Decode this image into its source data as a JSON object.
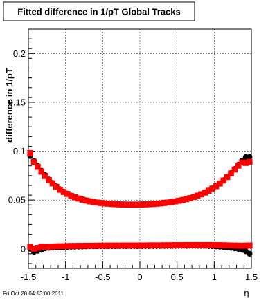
{
  "chart_data": {
    "type": "scatter",
    "title": "Fitted difference in 1/pT  Global Tracks",
    "xlabel": "η",
    "ylabel": "difference in 1/pT",
    "xlim": [
      -1.5,
      1.5
    ],
    "ylim": [
      -0.02,
      0.225
    ],
    "x_ticks": [
      -1.5,
      -1,
      -0.5,
      0,
      0.5,
      1,
      1.5
    ],
    "x_tick_labels": [
      "-1.5",
      "-1",
      "-0.5",
      "0",
      "0.5",
      "1",
      "1.5"
    ],
    "y_ticks": [
      0,
      0.05,
      0.1,
      0.15,
      0.2
    ],
    "y_tick_labels": [
      "0",
      "0.05",
      "0.1",
      "0.15",
      "0.2"
    ],
    "grid": true,
    "timestamp": "Fri Oct 28 04:13:00 2011",
    "series": [
      {
        "marker": "circle",
        "color": "#000000",
        "x": [
          -1.475,
          -1.425,
          -1.375,
          -1.325,
          -1.275,
          -1.225,
          -1.175,
          -1.125,
          -1.075,
          -1.025,
          -0.975,
          -0.925,
          -0.875,
          -0.825,
          -0.775,
          -0.725,
          -0.675,
          -0.625,
          -0.575,
          -0.525,
          -0.475,
          -0.425,
          -0.375,
          -0.325,
          -0.275,
          -0.225,
          -0.175,
          -0.125,
          -0.075,
          -0.025,
          0.025,
          0.075,
          0.125,
          0.175,
          0.225,
          0.275,
          0.325,
          0.375,
          0.425,
          0.475,
          0.525,
          0.575,
          0.625,
          0.675,
          0.725,
          0.775,
          0.825,
          0.875,
          0.925,
          0.975,
          1.025,
          1.075,
          1.125,
          1.175,
          1.225,
          1.275,
          1.325,
          1.375,
          1.425,
          1.475
        ],
        "y": [
          0.095,
          0.09,
          0.085,
          0.08,
          0.0755,
          0.071,
          0.0675,
          0.064,
          0.061,
          0.0585,
          0.0565,
          0.0545,
          0.053,
          0.0518,
          0.0507,
          0.0497,
          0.0489,
          0.0482,
          0.0476,
          0.0471,
          0.0467,
          0.0464,
          0.0461,
          0.0459,
          0.0457,
          0.0456,
          0.0455,
          0.0455,
          0.0455,
          0.0455,
          0.0456,
          0.0457,
          0.0459,
          0.0461,
          0.0464,
          0.0467,
          0.0471,
          0.0476,
          0.0481,
          0.0487,
          0.0494,
          0.0502,
          0.0511,
          0.0521,
          0.0533,
          0.0546,
          0.0561,
          0.0578,
          0.0597,
          0.0619,
          0.0644,
          0.0672,
          0.0703,
          0.0738,
          0.0776,
          0.0817,
          0.0862,
          0.0902,
          0.094,
          0.094
        ]
      },
      {
        "marker": "square",
        "color": "#ff0000",
        "x": [
          -1.475,
          -1.425,
          -1.375,
          -1.325,
          -1.275,
          -1.225,
          -1.175,
          -1.125,
          -1.075,
          -1.025,
          -0.975,
          -0.925,
          -0.875,
          -0.825,
          -0.775,
          -0.725,
          -0.675,
          -0.625,
          -0.575,
          -0.525,
          -0.475,
          -0.425,
          -0.375,
          -0.325,
          -0.275,
          -0.225,
          -0.175,
          -0.125,
          -0.075,
          -0.025,
          0.025,
          0.075,
          0.125,
          0.175,
          0.225,
          0.275,
          0.325,
          0.375,
          0.425,
          0.475,
          0.525,
          0.575,
          0.625,
          0.675,
          0.725,
          0.775,
          0.825,
          0.875,
          0.925,
          0.975,
          1.025,
          1.075,
          1.125,
          1.175,
          1.225,
          1.275,
          1.325,
          1.375,
          1.425,
          1.475
        ],
        "y": [
          0.098,
          0.089,
          0.084,
          0.079,
          0.0745,
          0.0705,
          0.067,
          0.0635,
          0.0605,
          0.0582,
          0.0562,
          0.0542,
          0.0527,
          0.0515,
          0.0504,
          0.0494,
          0.0486,
          0.048,
          0.0474,
          0.0469,
          0.0465,
          0.0462,
          0.0459,
          0.0457,
          0.0455,
          0.0454,
          0.0453,
          0.0453,
          0.0453,
          0.0453,
          0.0454,
          0.0455,
          0.0457,
          0.0459,
          0.0462,
          0.0465,
          0.0469,
          0.0474,
          0.0479,
          0.0485,
          0.0492,
          0.05,
          0.0509,
          0.0519,
          0.0531,
          0.0544,
          0.0559,
          0.0576,
          0.0595,
          0.0617,
          0.0641,
          0.0669,
          0.07,
          0.0735,
          0.0772,
          0.0812,
          0.0852,
          0.0885,
          0.088,
          0.089
        ]
      },
      {
        "marker": "circle",
        "color": "#000000",
        "x": [
          -1.475,
          -1.425,
          -1.375,
          -1.325,
          -1.275,
          -1.225,
          -1.175,
          -1.125,
          -1.075,
          -1.025,
          -0.975,
          -0.925,
          -0.875,
          -0.825,
          -0.775,
          -0.725,
          -0.675,
          -0.625,
          -0.575,
          -0.525,
          -0.475,
          -0.425,
          -0.375,
          -0.325,
          -0.275,
          -0.225,
          -0.175,
          -0.125,
          -0.075,
          -0.025,
          0.025,
          0.075,
          0.125,
          0.175,
          0.225,
          0.275,
          0.325,
          0.375,
          0.425,
          0.475,
          0.525,
          0.575,
          0.625,
          0.675,
          0.725,
          0.775,
          0.825,
          0.875,
          0.925,
          0.975,
          1.025,
          1.075,
          1.125,
          1.175,
          1.225,
          1.275,
          1.325,
          1.375,
          1.425,
          1.475
        ],
        "y": [
          0.0,
          -0.003,
          -0.002,
          -0.001,
          0.0005,
          0.001,
          0.0012,
          0.0014,
          0.0016,
          0.0018,
          0.002,
          0.0021,
          0.0022,
          0.0023,
          0.0024,
          0.0025,
          0.0026,
          0.0026,
          0.0027,
          0.0027,
          0.0028,
          0.0028,
          0.0028,
          0.0029,
          0.0029,
          0.0029,
          0.003,
          0.003,
          0.003,
          0.003,
          0.003,
          0.003,
          0.003,
          0.0031,
          0.0031,
          0.0031,
          0.0032,
          0.0032,
          0.0032,
          0.0033,
          0.0033,
          0.0033,
          0.0034,
          0.0034,
          0.0034,
          0.0034,
          0.0033,
          0.0032,
          0.003,
          0.0028,
          0.0025,
          0.0022,
          0.0018,
          0.0014,
          0.001,
          0.0005,
          0.0,
          -0.001,
          -0.0025,
          -0.005
        ]
      },
      {
        "marker": "square",
        "color": "#ff0000",
        "x": [
          -1.475,
          -1.425,
          -1.375,
          -1.325,
          -1.275,
          -1.225,
          -1.175,
          -1.125,
          -1.075,
          -1.025,
          -0.975,
          -0.925,
          -0.875,
          -0.825,
          -0.775,
          -0.725,
          -0.675,
          -0.625,
          -0.575,
          -0.525,
          -0.475,
          -0.425,
          -0.375,
          -0.325,
          -0.275,
          -0.225,
          -0.175,
          -0.125,
          -0.075,
          -0.025,
          0.025,
          0.075,
          0.125,
          0.175,
          0.225,
          0.275,
          0.325,
          0.375,
          0.425,
          0.475,
          0.525,
          0.575,
          0.625,
          0.675,
          0.725,
          0.775,
          0.825,
          0.875,
          0.925,
          0.975,
          1.025,
          1.075,
          1.125,
          1.175,
          1.225,
          1.275,
          1.325,
          1.375,
          1.425,
          1.475
        ],
        "y": [
          0.002,
          0.0,
          0.001,
          0.0025,
          0.002,
          0.0022,
          0.0024,
          0.0026,
          0.0027,
          0.0028,
          0.0029,
          0.003,
          0.003,
          0.0031,
          0.0031,
          0.0032,
          0.0032,
          0.0032,
          0.0033,
          0.0033,
          0.0033,
          0.0034,
          0.0034,
          0.0034,
          0.0034,
          0.0035,
          0.0035,
          0.0035,
          0.0035,
          0.0035,
          0.0035,
          0.0035,
          0.0036,
          0.0036,
          0.0036,
          0.0036,
          0.0037,
          0.0037,
          0.0037,
          0.0038,
          0.0038,
          0.0038,
          0.0039,
          0.0039,
          0.0039,
          0.0039,
          0.0039,
          0.0039,
          0.0039,
          0.0039,
          0.0038,
          0.0038,
          0.0037,
          0.0036,
          0.0035,
          0.0034,
          0.0033,
          0.0032,
          0.0034,
          0.0035
        ]
      }
    ]
  }
}
